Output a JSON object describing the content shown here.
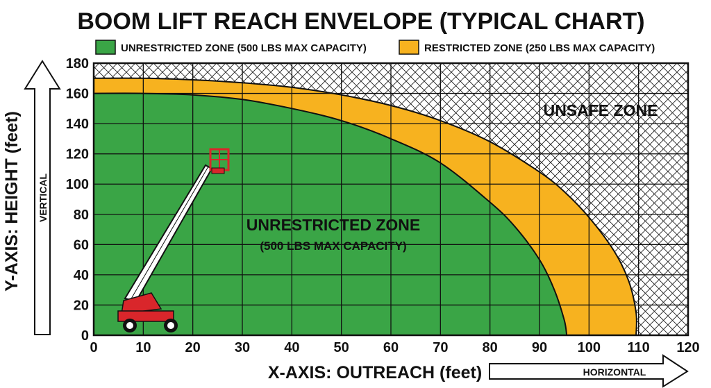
{
  "colors": {
    "unrestricted": "#3aa546",
    "restricted": "#f7b21f",
    "grid": "#111111",
    "hatch": "#222222",
    "lift_red": "#d9262b",
    "lift_white": "#ffffff"
  },
  "chart_data": {
    "type": "area",
    "title": "BOOM LIFT REACH ENVELOPE (TYPICAL CHART)",
    "xlabel": "X-AXIS: OUTREACH (feet)",
    "ylabel": "Y-AXIS: HEIGHT (feet)",
    "xlim": [
      0,
      120
    ],
    "ylim": [
      0,
      180
    ],
    "xticks": [
      "0",
      "10",
      "20",
      "30",
      "40",
      "50",
      "60",
      "70",
      "80",
      "90",
      "100",
      "110",
      "120"
    ],
    "yticks": [
      "0",
      "20",
      "40",
      "60",
      "80",
      "100",
      "120",
      "140",
      "160",
      "180"
    ],
    "grid": true,
    "legend_position": "top",
    "horizontal_arrow_label": "HORIZONTAL",
    "vertical_arrow_label": "VERTICAL",
    "series": [
      {
        "name": "UNRESTRICTED ZONE (500 LBS MAX CAPACITY)",
        "color": "#3aa546",
        "x": [
          0,
          10,
          20,
          30,
          40,
          50,
          60,
          70,
          80,
          85,
          90,
          93,
          95,
          95.5
        ],
        "y": [
          160,
          160,
          159,
          156,
          150,
          142,
          130,
          114,
          88,
          72,
          50,
          30,
          10,
          0
        ]
      },
      {
        "name": "RESTRICTED ZONE (250 LBS MAX CAPACITY)",
        "color": "#f7b21f",
        "x": [
          0,
          10,
          20,
          30,
          40,
          50,
          60,
          70,
          80,
          90,
          95,
          100,
          105,
          108,
          109.5,
          109.5
        ],
        "y": [
          170,
          170,
          169,
          167,
          164,
          159,
          152,
          142,
          128,
          108,
          95,
          78,
          56,
          36,
          15,
          0
        ]
      }
    ],
    "annotations": [
      {
        "name": "unsafe-zone-label",
        "text": "UNSAFE ZONE"
      },
      {
        "name": "unrestricted-zone-label",
        "text": "UNRESTRICTED ZONE"
      },
      {
        "name": "unrestricted-zone-capacity",
        "text": "(500 LBS MAX CAPACITY)"
      }
    ]
  }
}
